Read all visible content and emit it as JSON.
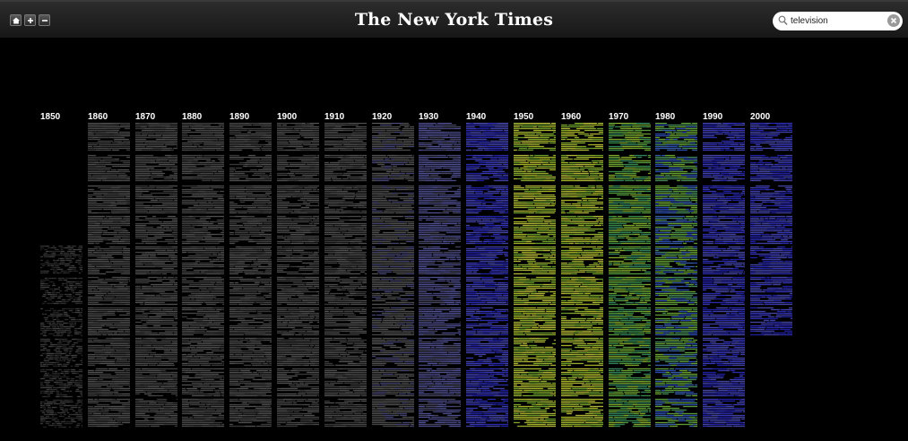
{
  "header": {
    "logo_text": "The New York Times",
    "nav_buttons": [
      {
        "icon": "home-icon"
      },
      {
        "icon": "plus-icon"
      },
      {
        "icon": "minus-icon"
      }
    ]
  },
  "search": {
    "value": "television",
    "placeholder": "",
    "icon": "search-icon",
    "clear_icon": "clear-icon"
  },
  "decades": [
    {
      "label": "1850",
      "years": 6,
      "palette": "dark-gray"
    },
    {
      "label": "1860",
      "years": 10,
      "palette": "gray"
    },
    {
      "label": "1870",
      "years": 10,
      "palette": "gray"
    },
    {
      "label": "1880",
      "years": 10,
      "palette": "gray"
    },
    {
      "label": "1890",
      "years": 10,
      "palette": "gray"
    },
    {
      "label": "1900",
      "years": 10,
      "palette": "gray"
    },
    {
      "label": "1910",
      "years": 10,
      "palette": "gray"
    },
    {
      "label": "1920",
      "years": 10,
      "palette": "gray-blue"
    },
    {
      "label": "1930",
      "years": 10,
      "palette": "blue-gray"
    },
    {
      "label": "1940",
      "years": 10,
      "palette": "blue"
    },
    {
      "label": "1950",
      "years": 10,
      "palette": "yellow-green"
    },
    {
      "label": "1960",
      "years": 10,
      "palette": "yellow-green"
    },
    {
      "label": "1970",
      "years": 10,
      "palette": "green"
    },
    {
      "label": "1980",
      "years": 10,
      "palette": "green-blue"
    },
    {
      "label": "1990",
      "years": 10,
      "palette": "blue"
    },
    {
      "label": "2000",
      "years": 7,
      "palette": "blue"
    }
  ],
  "colors": {
    "background": "#000000",
    "dark-gray": [
      "#3c3c3c",
      "#4a4a4a",
      "#555555",
      "#2e2e2e"
    ],
    "gray": [
      "#555555",
      "#5e5e5e",
      "#686868",
      "#4a4a4a"
    ],
    "gray-blue": [
      "#5a5a5a",
      "#636363",
      "#585890",
      "#6a6a6a"
    ],
    "blue-gray": [
      "#5a5aa0",
      "#6262b0",
      "#585878",
      "#6868c0"
    ],
    "blue": [
      "#3838e0",
      "#4848f0",
      "#5252d8",
      "#2a2ad0",
      "#5a5ad8"
    ],
    "yellow-green": [
      "#c8e040",
      "#d8e830",
      "#a8d838",
      "#e8ec48",
      "#88c838"
    ],
    "green": [
      "#6ec850",
      "#88d040",
      "#48b060",
      "#a8d838",
      "#40a878"
    ],
    "green-blue": [
      "#78c848",
      "#58b070",
      "#4878d8",
      "#8ad040",
      "#3a60e0"
    ]
  }
}
